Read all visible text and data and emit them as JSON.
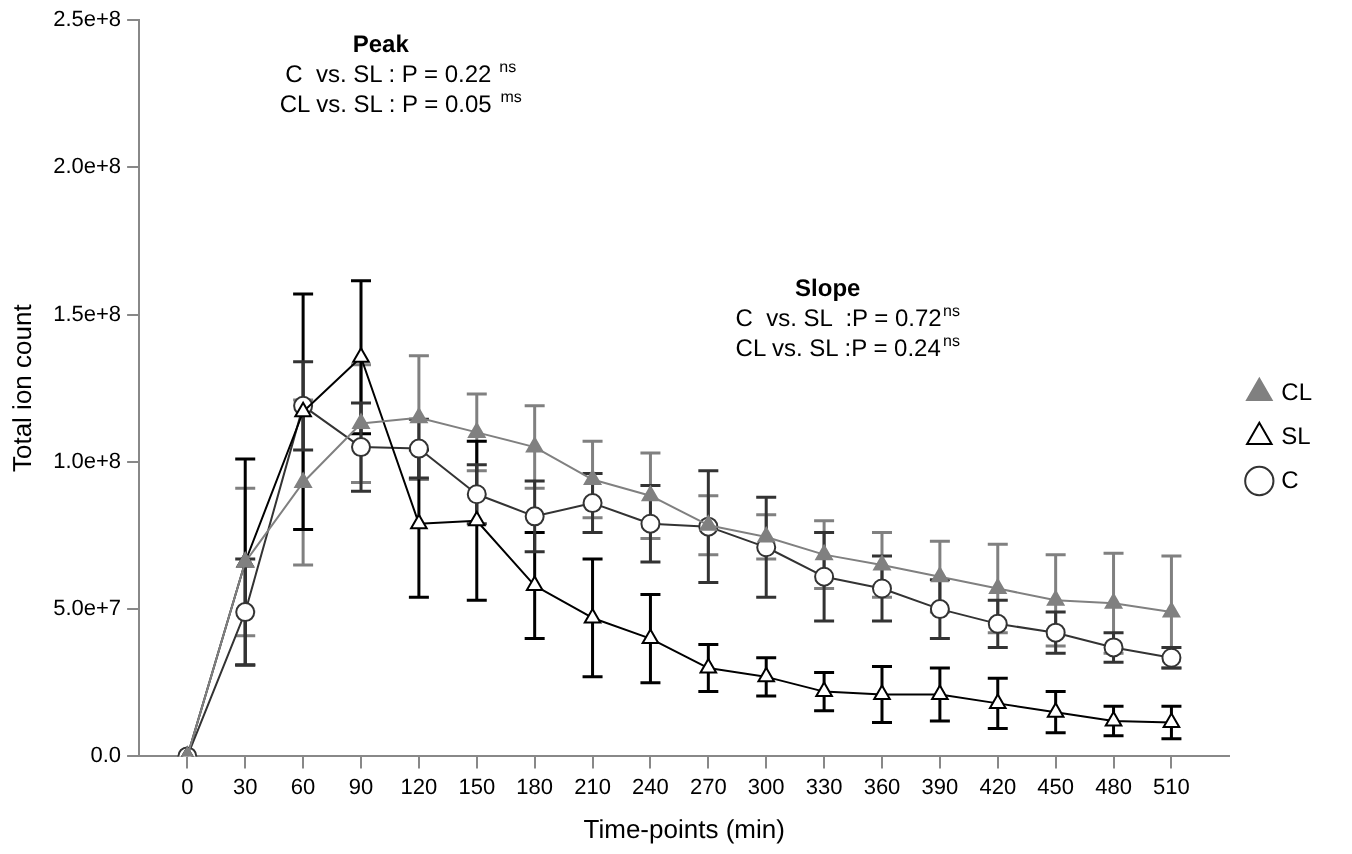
{
  "chart_data": {
    "type": "line",
    "xlabel": "Time-points (min)",
    "ylabel": "Total ion count",
    "x": [
      0,
      30,
      60,
      90,
      120,
      150,
      180,
      210,
      240,
      270,
      300,
      330,
      360,
      390,
      420,
      450,
      480,
      510
    ],
    "xlim": [
      -25,
      540
    ],
    "xticks": [
      0,
      30,
      60,
      90,
      120,
      150,
      180,
      210,
      240,
      270,
      300,
      330,
      360,
      390,
      420,
      450,
      480,
      510
    ],
    "ylim": [
      0,
      250000000
    ],
    "yticks": [
      {
        "value": 0,
        "label": "0.0"
      },
      {
        "value": 50000000,
        "label": "5.0e+7"
      },
      {
        "value": 100000000,
        "label": "1.0e+8"
      },
      {
        "value": 150000000,
        "label": "1.5e+8"
      },
      {
        "value": 200000000,
        "label": "2.0e+8"
      },
      {
        "value": 250000000,
        "label": "2.5e+8"
      }
    ],
    "grid": false,
    "legend": "right",
    "line_style": "solid",
    "series": [
      {
        "name": "CL",
        "color": "#808080",
        "marker": "triangle",
        "values": [
          0,
          66000000,
          93000000,
          113000000,
          115000000,
          110000000,
          105000000,
          94000000,
          88500000,
          78500000,
          74500000,
          68500000,
          65000000,
          61000000,
          57000000,
          53000000,
          52000000,
          49000000
        ],
        "errors": [
          null,
          25000000,
          28000000,
          20000000,
          21000000,
          13000000,
          14000000,
          13000000,
          14500000,
          10000000,
          7500000,
          11500000,
          11000000,
          12000000,
          15000000,
          15500000,
          17000000,
          19000000
        ]
      },
      {
        "name": "SL",
        "color": "#000000",
        "marker": "triangle",
        "values": [
          0,
          66000000,
          117000000,
          135500000,
          79000000,
          80000000,
          58000000,
          47000000,
          40000000,
          30000000,
          27000000,
          22000000,
          21000000,
          21000000,
          18000000,
          15000000,
          12000000,
          11500000
        ],
        "errors": [
          null,
          35000000,
          40000000,
          26000000,
          25000000,
          27000000,
          18000000,
          20000000,
          15000000,
          8000000,
          6500000,
          6500000,
          9500000,
          9000000,
          8500000,
          7000000,
          5000000,
          5500000
        ]
      },
      {
        "name": "C",
        "color": "#333333",
        "marker": "circle",
        "values": [
          0,
          49000000,
          119000000,
          105000000,
          104500000,
          89000000,
          81500000,
          86000000,
          79000000,
          78000000,
          71000000,
          61000000,
          57000000,
          50000000,
          45000000,
          42000000,
          37000000,
          33500000
        ],
        "errors": [
          null,
          18000000,
          15000000,
          15000000,
          10000000,
          10000000,
          12000000,
          10000000,
          13000000,
          19000000,
          17000000,
          15000000,
          11000000,
          10000000,
          8000000,
          7000000,
          5000000,
          3500000
        ]
      }
    ],
    "annotations": [
      "Peak",
      "C  vs. SL : P = 0.22 $^{ns}$",
      "CL vs. SL : P = 0.05 $^{ms}$",
      "Slope",
      "C  vs. SL  :P = 0.72$^{ns}$",
      "CL vs. SL :P = 0.24$^{ns}$"
    ]
  }
}
